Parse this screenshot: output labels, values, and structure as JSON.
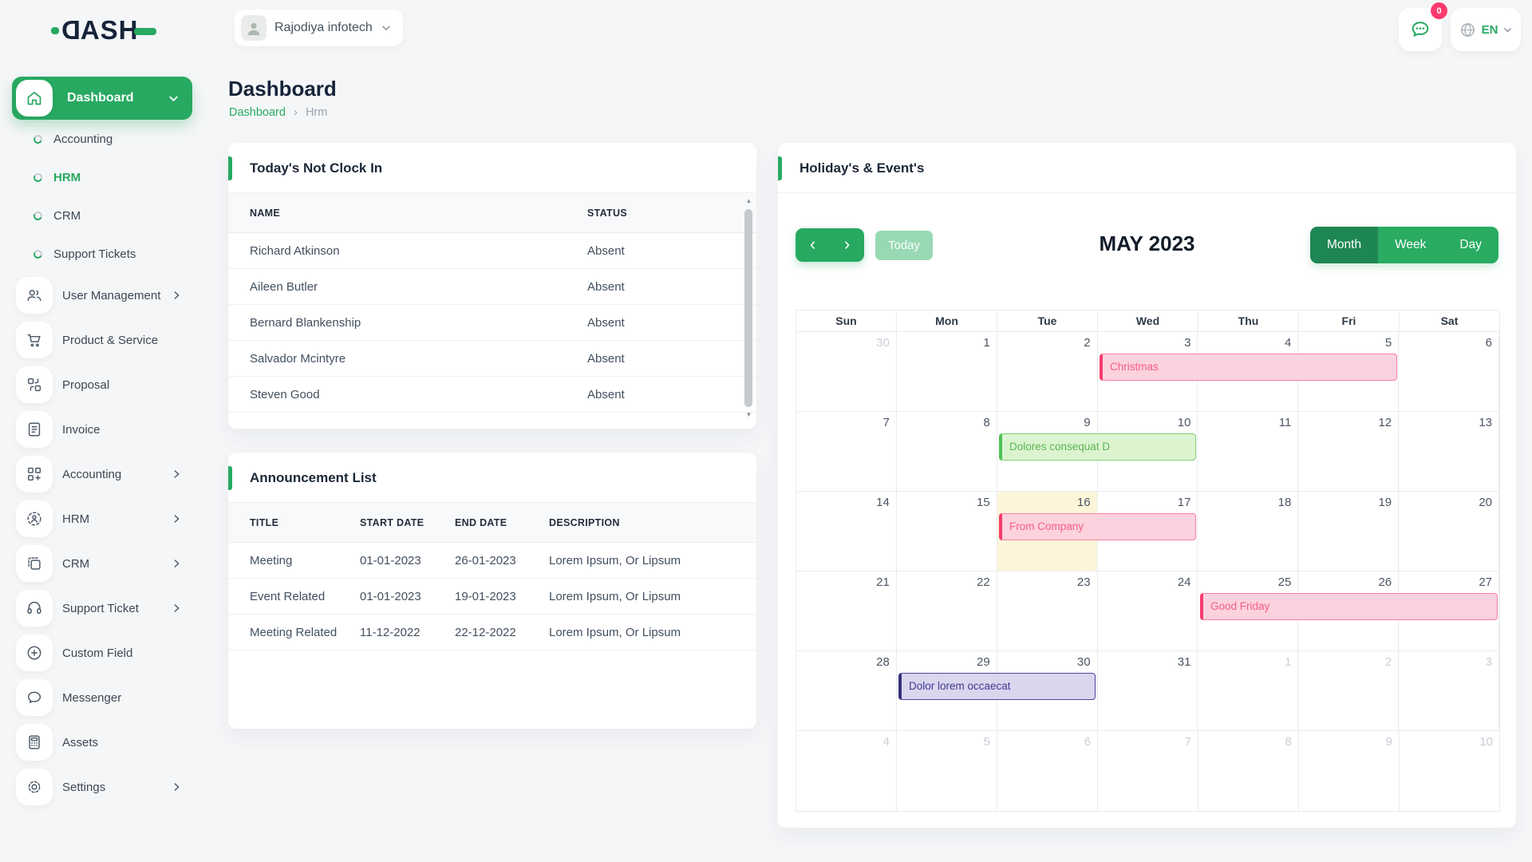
{
  "topbar": {
    "logo_text": "DASH",
    "company": "Rajodiya infotech",
    "notification_badge": "0",
    "language": "EN"
  },
  "page": {
    "title": "Dashboard",
    "breadcrumb_home": "Dashboard",
    "breadcrumb_separator": "›",
    "breadcrumb_current": "Hrm"
  },
  "sidebar": {
    "active": {
      "label": "Dashboard",
      "icon": "home"
    },
    "sub_items": [
      {
        "label": "Accounting",
        "active": false
      },
      {
        "label": "HRM",
        "active": true
      },
      {
        "label": "CRM",
        "active": false
      },
      {
        "label": "Support Tickets",
        "active": false
      }
    ],
    "items": [
      {
        "label": "User Management",
        "icon": "users",
        "chevron": true
      },
      {
        "label": "Product & Service",
        "icon": "cart",
        "chevron": false
      },
      {
        "label": "Proposal",
        "icon": "proposal",
        "chevron": false
      },
      {
        "label": "Invoice",
        "icon": "invoice",
        "chevron": false
      },
      {
        "label": "Accounting",
        "icon": "accounting",
        "chevron": true
      },
      {
        "label": "HRM",
        "icon": "hrm",
        "chevron": true
      },
      {
        "label": "CRM",
        "icon": "crm",
        "chevron": true
      },
      {
        "label": "Support Ticket",
        "icon": "headset",
        "chevron": true
      },
      {
        "label": "Custom Field",
        "icon": "plus-circle",
        "chevron": false
      },
      {
        "label": "Messenger",
        "icon": "chat",
        "chevron": false
      },
      {
        "label": "Assets",
        "icon": "calculator",
        "chevron": false
      },
      {
        "label": "Settings",
        "icon": "gear",
        "chevron": true
      }
    ]
  },
  "clockin_card": {
    "title": "Today's Not Clock In",
    "columns": [
      "NAME",
      "STATUS"
    ],
    "rows": [
      [
        "Richard Atkinson",
        "Absent"
      ],
      [
        "Aileen Butler",
        "Absent"
      ],
      [
        "Bernard Blankenship",
        "Absent"
      ],
      [
        "Salvador Mcintyre",
        "Absent"
      ],
      [
        "Steven Good",
        "Absent"
      ]
    ]
  },
  "announcement_card": {
    "title": "Announcement List",
    "columns": [
      "TITLE",
      "START DATE",
      "END DATE",
      "DESCRIPTION"
    ],
    "rows": [
      [
        "Meeting",
        "01-01-2023",
        "26-01-2023",
        "Lorem Ipsum, Or Lipsum"
      ],
      [
        "Event Related",
        "01-01-2023",
        "19-01-2023",
        "Lorem Ipsum, Or Lipsum"
      ],
      [
        "Meeting Related",
        "11-12-2022",
        "22-12-2022",
        "Lorem Ipsum, Or Lipsum"
      ]
    ]
  },
  "calendar_card": {
    "title": "Holiday's & Event's",
    "toolbar": {
      "prev_label": "‹",
      "next_label": "›",
      "today_label": "Today",
      "month_label": "MAY 2023",
      "views": [
        "Month",
        "Week",
        "Day"
      ],
      "active_view": "Month"
    },
    "day_headers": [
      "Sun",
      "Mon",
      "Tue",
      "Wed",
      "Thu",
      "Fri",
      "Sat"
    ],
    "weeks": [
      [
        {
          "d": "30",
          "other": true
        },
        {
          "d": "1"
        },
        {
          "d": "2"
        },
        {
          "d": "3"
        },
        {
          "d": "4"
        },
        {
          "d": "5"
        },
        {
          "d": "6"
        }
      ],
      [
        {
          "d": "7"
        },
        {
          "d": "8"
        },
        {
          "d": "9"
        },
        {
          "d": "10"
        },
        {
          "d": "11"
        },
        {
          "d": "12"
        },
        {
          "d": "13"
        }
      ],
      [
        {
          "d": "14"
        },
        {
          "d": "15"
        },
        {
          "d": "16"
        },
        {
          "d": "17"
        },
        {
          "d": "18"
        },
        {
          "d": "19"
        },
        {
          "d": "20"
        }
      ],
      [
        {
          "d": "21"
        },
        {
          "d": "22"
        },
        {
          "d": "23"
        },
        {
          "d": "24"
        },
        {
          "d": "25"
        },
        {
          "d": "26"
        },
        {
          "d": "27"
        }
      ],
      [
        {
          "d": "28"
        },
        {
          "d": "29"
        },
        {
          "d": "30"
        },
        {
          "d": "31"
        },
        {
          "d": "1",
          "other": true
        },
        {
          "d": "2",
          "other": true
        },
        {
          "d": "3",
          "other": true
        }
      ],
      [
        {
          "d": "4",
          "other": true
        },
        {
          "d": "5",
          "other": true
        },
        {
          "d": "6",
          "other": true
        },
        {
          "d": "7",
          "other": true
        },
        {
          "d": "8",
          "other": true
        },
        {
          "d": "9",
          "other": true
        },
        {
          "d": "10",
          "other": true
        }
      ]
    ],
    "today_cell": {
      "row": 2,
      "col": 2
    },
    "events": [
      {
        "label": "Christmas",
        "row": 0,
        "col_start": 3,
        "col_span": 3,
        "color": "pink"
      },
      {
        "label": "Dolores consequat D",
        "row": 1,
        "col_start": 2,
        "col_span": 2,
        "color": "green"
      },
      {
        "label": "From Company",
        "row": 2,
        "col_start": 2,
        "col_span": 2,
        "color": "pink"
      },
      {
        "label": "Good Friday",
        "row": 3,
        "col_start": 4,
        "col_span": 3,
        "color": "pink"
      },
      {
        "label": "Dolor lorem occaecat",
        "row": 4,
        "col_start": 1,
        "col_span": 2,
        "color": "purple"
      }
    ]
  },
  "colors": {
    "primary_green": "#27a961",
    "dark_green": "#1e8652",
    "light_green": "#98d9b4",
    "pink": "#f63b6e",
    "navy": "#16243a",
    "today_cell_bg": "#fcf5da"
  }
}
